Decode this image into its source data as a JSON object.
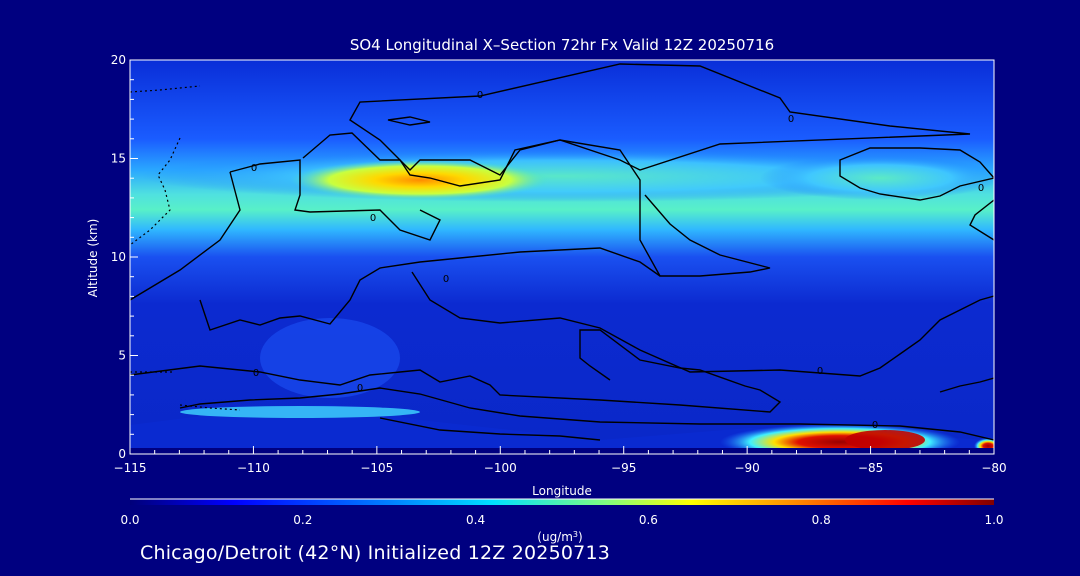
{
  "chart_data": {
    "type": "heatmap",
    "title": "SO4 Longitudinal X–Section 72hr  Fx Valid 12Z 20250716",
    "xlabel": "Longitude",
    "ylabel": "Altitude (km)",
    "xlim": [
      -115,
      -80
    ],
    "ylim": [
      0,
      20
    ],
    "x_ticks": [
      -115,
      -110,
      -105,
      -100,
      -95,
      -90,
      -85,
      -80
    ],
    "x_tick_labels": [
      "−115",
      "−110",
      "−105",
      "−100",
      "−95",
      "−90",
      "−85",
      "−80"
    ],
    "y_ticks": [
      0,
      5,
      10,
      15,
      20
    ],
    "y_tick_labels": [
      "0",
      "5",
      "10",
      "15",
      "20"
    ],
    "colorbar": {
      "range": [
        0.0,
        1.0
      ],
      "tick_values": [
        0.0,
        0.2,
        0.4,
        0.6,
        0.8,
        1.0
      ],
      "tick_labels": [
        "0.0",
        "0.2",
        "0.4",
        "0.6",
        "0.8",
        "1.0"
      ],
      "units_prefix": "(ug/m",
      "units_sup": "3",
      "units_suffix": ")",
      "colormap": "rainbow (dark blue → cyan → yellow → red → dark red)"
    },
    "features": [
      {
        "lon": [
          -108,
          -98
        ],
        "alt": 13.8,
        "value": 0.65
      },
      {
        "lon": [
          -90,
          -83
        ],
        "alt": 0.7,
        "value": 1.0
      },
      {
        "lon": [
          -112,
          -80
        ],
        "alt": 14.5,
        "value": 0.4
      }
    ],
    "contour_labels": [
      "0",
      "0",
      "0",
      "0",
      "0",
      "0",
      "0",
      "0",
      "0",
      "0"
    ],
    "grid": false
  },
  "footer": "Chicago/Detroit (42°N) Initialized 12Z 20250713",
  "colors": {
    "background": "#000080",
    "text": "#ffffff",
    "contour": "#000000"
  }
}
